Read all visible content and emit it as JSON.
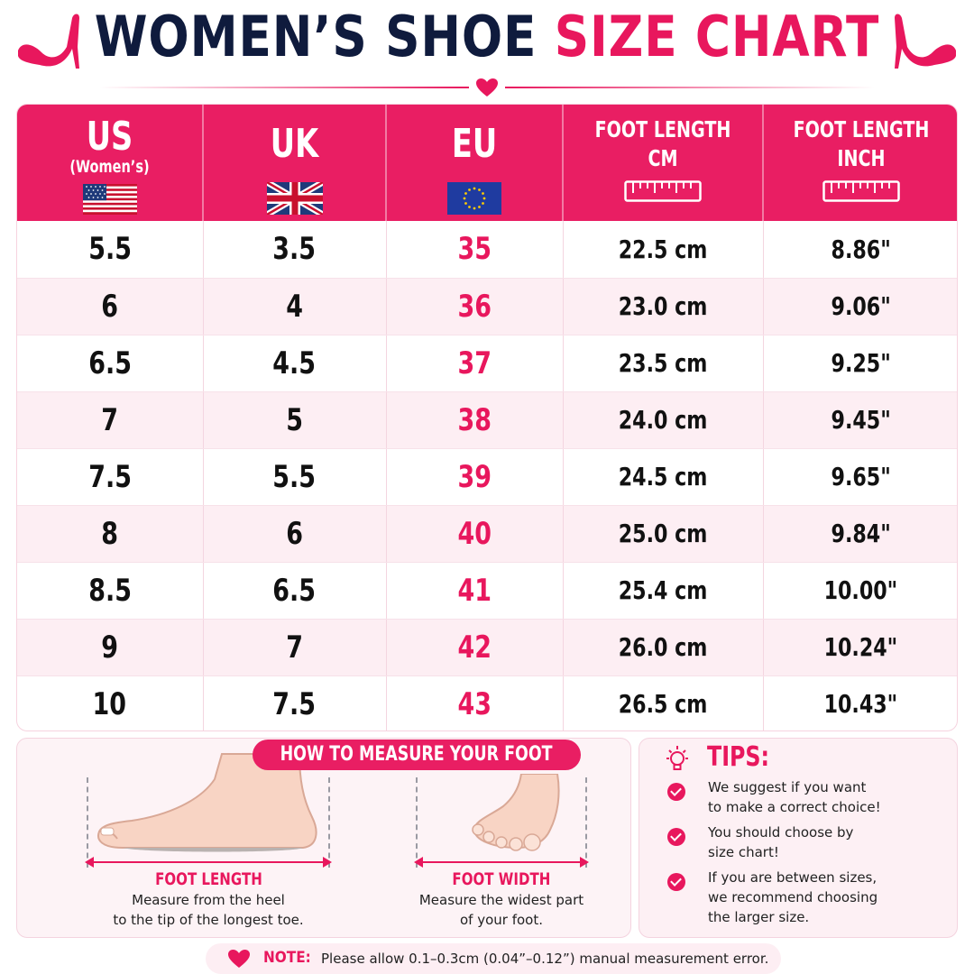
{
  "title": {
    "main": "WOMEN’S SHOE ",
    "accent": "SIZE CHART"
  },
  "headers": {
    "us": "US",
    "us_sub": "(Women’s)",
    "uk": "UK",
    "eu": "EU",
    "cm_line1": "FOOT LENGTH",
    "cm_line2": "CM",
    "inch_line1": "FOOT LENGTH",
    "inch_line2": "INCH"
  },
  "rows": [
    {
      "us": "5.5",
      "uk": "3.5",
      "eu": "35",
      "cm": "22.5 cm",
      "inch": "8.86\""
    },
    {
      "us": "6",
      "uk": "4",
      "eu": "36",
      "cm": "23.0 cm",
      "inch": "9.06\""
    },
    {
      "us": "6.5",
      "uk": "4.5",
      "eu": "37",
      "cm": "23.5 cm",
      "inch": "9.25\""
    },
    {
      "us": "7",
      "uk": "5",
      "eu": "38",
      "cm": "24.0 cm",
      "inch": "9.45\""
    },
    {
      "us": "7.5",
      "uk": "5.5",
      "eu": "39",
      "cm": "24.5 cm",
      "inch": "9.65\""
    },
    {
      "us": "8",
      "uk": "6",
      "eu": "40",
      "cm": "25.0 cm",
      "inch": "9.84\""
    },
    {
      "us": "8.5",
      "uk": "6.5",
      "eu": "41",
      "cm": "25.4 cm",
      "inch": "10.00\""
    },
    {
      "us": "9",
      "uk": "7",
      "eu": "42",
      "cm": "26.0 cm",
      "inch": "10.24\""
    },
    {
      "us": "10",
      "uk": "7.5",
      "eu": "43",
      "cm": "26.5 cm",
      "inch": "10.43\""
    }
  ],
  "measure": {
    "title": "HOW TO MEASURE YOUR FOOT",
    "length_label": "FOOT LENGTH",
    "length_desc_1": "Measure from the heel",
    "length_desc_2": "to the tip of the longest toe.",
    "width_label": "FOOT WIDTH",
    "width_desc_1": "Measure the widest part",
    "width_desc_2": "of your foot."
  },
  "tips": {
    "title": "TIPS:",
    "items": [
      {
        "line1": "We suggest if you want",
        "line2": "to make a correct choice!"
      },
      {
        "line1": "You should choose by",
        "line2": "size chart!"
      },
      {
        "line1": "If you are between sizes,",
        "line2": "we recommend choosing",
        "line3": "the larger size."
      }
    ]
  },
  "note": {
    "label": "NOTE:",
    "text": "Please allow 0.1–0.3cm (0.04”–0.12”) manual measurement error."
  },
  "colors": {
    "accent": "#e8175d",
    "header_bg": "#e91e63",
    "title_dark": "#0f1b3d",
    "row_alt": "#fdeef3"
  }
}
